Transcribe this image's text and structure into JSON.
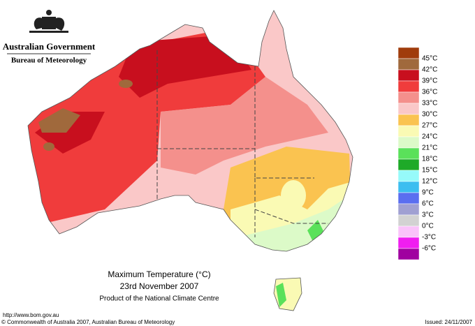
{
  "header": {
    "government": "Australian Government",
    "agency": "Bureau of Meteorology"
  },
  "map": {
    "title": "Maximum Temperature (°C)",
    "date": "23rd November 2007",
    "product": "Product of the National Climate Centre"
  },
  "legend": {
    "colors": [
      "#a03c0c",
      "#a0693c",
      "#c80f1e",
      "#f03c3c",
      "#f4908c",
      "#fac8c8",
      "#fac350",
      "#fafab4",
      "#dcfac8",
      "#5ae15a",
      "#1eaa28",
      "#96fafa",
      "#3cbef0",
      "#5a6ef0",
      "#a0a0d2",
      "#d2d2d2",
      "#fac3fa",
      "#f01ef0",
      "#a000a0"
    ],
    "labels": [
      "45°C",
      "42°C",
      "39°C",
      "36°C",
      "33°C",
      "30°C",
      "27°C",
      "24°C",
      "21°C",
      "18°C",
      "15°C",
      "12°C",
      "9°C",
      "6°C",
      "3°C",
      "0°C",
      "-3°C",
      "-6°C"
    ]
  },
  "footer": {
    "url": "http://www.bom.gov.au",
    "copyright": "© Commonwealth of Australia 2007, Australian Bureau of Meteorology",
    "issued": "Issued: 24/11/2007"
  }
}
